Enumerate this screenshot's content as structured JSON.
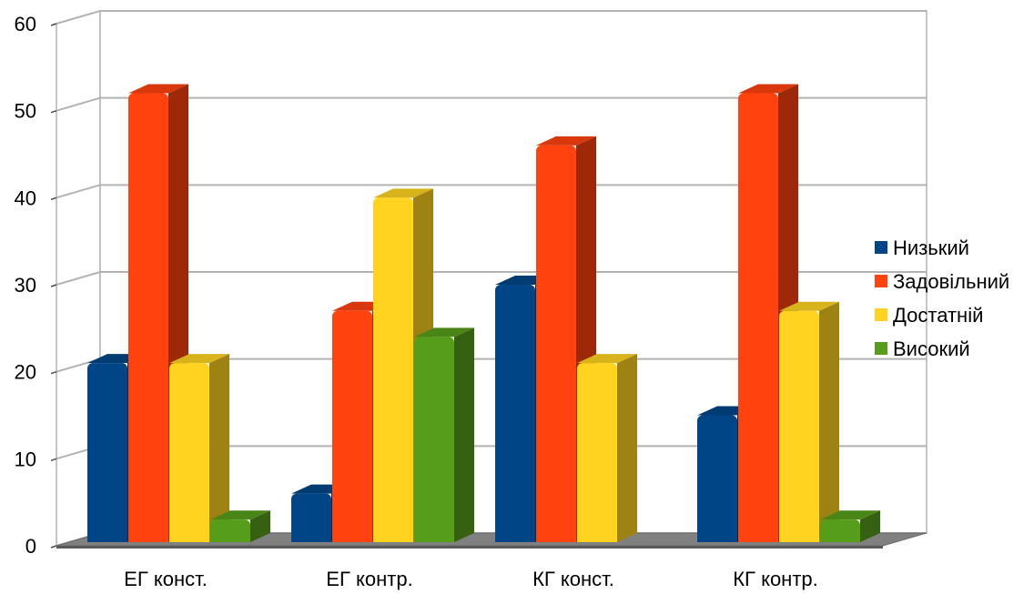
{
  "chart_data": {
    "type": "bar",
    "style": "3d-clustered",
    "categories": [
      "ЕГ конст.",
      "ЕГ контр.",
      "КГ конст.",
      "КГ контр."
    ],
    "series": [
      {
        "name": "Низький",
        "values": [
          21,
          6,
          30,
          15
        ],
        "color": "#004586"
      },
      {
        "name": "Задовільний",
        "values": [
          52,
          27,
          46,
          52
        ],
        "color": "#ff420e"
      },
      {
        "name": "Достатній",
        "values": [
          21,
          40,
          21,
          27
        ],
        "color": "#ffd320"
      },
      {
        "name": "Високий",
        "values": [
          3,
          24,
          0,
          3
        ],
        "color": "#579d1c"
      }
    ],
    "yticks": [
      0,
      10,
      20,
      30,
      40,
      50,
      60
    ],
    "ylim": [
      0,
      60
    ],
    "grid": true,
    "legend_position": "right"
  }
}
